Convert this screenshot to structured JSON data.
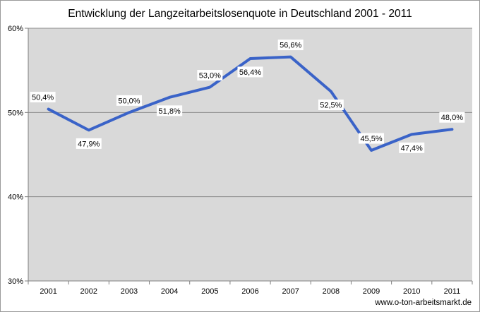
{
  "chart_data": {
    "type": "line",
    "title": "Entwicklung der Langzeitarbeitslosenquote in Deutschland 2001 - 2011",
    "xlabel": "",
    "ylabel": "",
    "categories": [
      "2001",
      "2002",
      "2003",
      "2004",
      "2005",
      "2006",
      "2007",
      "2008",
      "2009",
      "2010",
      "2011"
    ],
    "series": [
      {
        "name": "Langzeitarbeitslosenquote",
        "values": [
          50.4,
          47.9,
          50.0,
          51.8,
          53.0,
          56.4,
          56.6,
          52.5,
          45.5,
          47.4,
          48.0
        ],
        "labels": [
          "50,4%",
          "47,9%",
          "50,0%",
          "51,8%",
          "53,0%",
          "56,4%",
          "56,6%",
          "52,5%",
          "45,5%",
          "47,4%",
          "48,0%"
        ],
        "color": "#3a63c8"
      }
    ],
    "ylim": [
      30,
      60
    ],
    "yticks": [
      30,
      40,
      50,
      60
    ],
    "ytick_labels": [
      "30%",
      "40%",
      "50%",
      "60%"
    ],
    "grid": true,
    "legend": "none",
    "plot_background": "#d9d9d9"
  },
  "source": "www.o-ton-arbeitsmarkt.de"
}
